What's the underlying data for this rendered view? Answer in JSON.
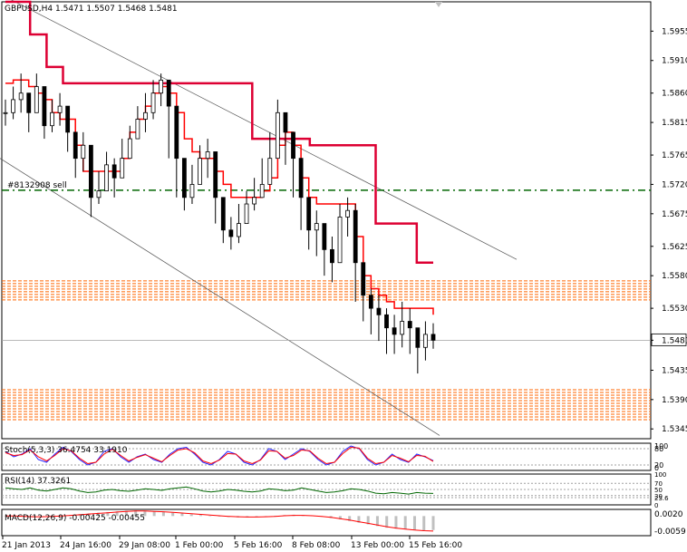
{
  "chart_data": [
    {
      "type": "line",
      "title": "GBPUSD,H4  1.5471 1.5507 1.5468 1.5481",
      "xlabel": "",
      "ylabel": "",
      "ylim": [
        1.533,
        1.6
      ],
      "grid": false,
      "y_ticks": [
        "1.5955",
        "1.5910",
        "1.5860",
        "1.5815",
        "1.5765",
        "1.5720",
        "1.5675",
        "1.5625",
        "1.5580",
        "1.5530",
        "1.5481",
        "1.5435",
        "1.5390",
        "1.5345"
      ],
      "current_price": 1.5481,
      "x_ticks": [
        "21 Jan 2013",
        "24 Jan 16:00",
        "29 Jan 08:00",
        "1 Feb 00:00",
        "5 Feb 16:00",
        "8 Feb 08:00",
        "13 Feb 00:00",
        "15 Feb 16:00"
      ],
      "annotations": [
        {
          "text": "#8132908 sell",
          "price": 1.5711
        }
      ],
      "zones": [
        {
          "from": 1.5542,
          "to": 1.5572,
          "color": "#ff6600"
        },
        {
          "from": 1.5355,
          "to": 1.5405,
          "color": "#ff6600"
        }
      ],
      "trendlines": [
        {
          "from": [
            "21 Jan 2013",
            1.6012
          ],
          "to": [
            "15 Feb 16:00+",
            1.5605
          ]
        },
        {
          "from": [
            "21 Jan 2013",
            1.576
          ],
          "to": [
            "15 Feb 16:00",
            1.5335
          ]
        }
      ],
      "series": [
        {
          "kind": "candles",
          "close": [
            1.583,
            1.585,
            1.586,
            1.583,
            1.587,
            1.581,
            1.583,
            1.584,
            1.58,
            1.576,
            1.578,
            1.57,
            1.571,
            1.575,
            1.573,
            1.576,
            1.579,
            1.582,
            1.583,
            1.586,
            1.588,
            1.584,
            1.576,
            1.57,
            1.572,
            1.576,
            1.577,
            1.57,
            1.565,
            1.564,
            1.566,
            1.569,
            1.57,
            1.572,
            1.576,
            1.583,
            1.58,
            1.576,
            1.57,
            1.565,
            1.566,
            1.562,
            1.56,
            1.567,
            1.568,
            1.56,
            1.555,
            1.553,
            1.552,
            1.55,
            1.549,
            1.551,
            1.55,
            1.547,
            1.549,
            1.5481
          ],
          "high": [
            1.585,
            1.587,
            1.589,
            1.586,
            1.589,
            1.584,
            1.585,
            1.586,
            1.583,
            1.58,
            1.58,
            1.573,
            1.574,
            1.577,
            1.576,
            1.579,
            1.581,
            1.584,
            1.586,
            1.588,
            1.589,
            1.587,
            1.579,
            1.573,
            1.575,
            1.578,
            1.579,
            1.574,
            1.568,
            1.567,
            1.569,
            1.571,
            1.573,
            1.576,
            1.58,
            1.585,
            1.583,
            1.579,
            1.574,
            1.569,
            1.568,
            1.565,
            1.564,
            1.569,
            1.57,
            1.569,
            1.558,
            1.556,
            1.555,
            1.553,
            1.552,
            1.554,
            1.553,
            1.55,
            1.551,
            1.5507
          ],
          "low": [
            1.581,
            1.582,
            1.583,
            1.58,
            1.583,
            1.579,
            1.58,
            1.581,
            1.577,
            1.573,
            1.574,
            1.567,
            1.569,
            1.572,
            1.57,
            1.573,
            1.576,
            1.579,
            1.58,
            1.582,
            1.584,
            1.576,
            1.57,
            1.568,
            1.569,
            1.573,
            1.573,
            1.566,
            1.563,
            1.562,
            1.563,
            1.566,
            1.568,
            1.57,
            1.572,
            1.578,
            1.575,
            1.57,
            1.565,
            1.562,
            1.561,
            1.558,
            1.557,
            1.562,
            1.564,
            1.554,
            1.551,
            1.549,
            1.548,
            1.546,
            1.546,
            1.547,
            1.546,
            1.543,
            1.545,
            1.5468
          ]
        },
        {
          "kind": "stepline",
          "name": "",
          "color": "#dd0033",
          "values": [
            1.6,
            1.6,
            1.6,
            1.595,
            1.595,
            1.59,
            1.59,
            1.5875,
            1.5875,
            1.5875,
            1.5875,
            1.5875,
            1.5875,
            1.5875,
            1.5875,
            1.5875,
            1.5875,
            1.5875,
            1.5875,
            1.5875,
            1.5875,
            1.5875,
            1.5875,
            1.5875,
            1.5875,
            1.5875,
            1.5875,
            1.5875,
            1.5875,
            1.5875,
            1.579,
            1.579,
            1.579,
            1.579,
            1.579,
            1.579,
            1.579,
            1.578,
            1.578,
            1.578,
            1.578,
            1.578,
            1.578,
            1.578,
            1.578,
            1.566,
            1.566,
            1.566,
            1.566,
            1.566,
            1.56,
            1.56,
            1.56
          ]
        },
        {
          "kind": "stepline",
          "name": "",
          "color": "#ff0000",
          "values": [
            1.5875,
            1.588,
            1.588,
            1.587,
            1.586,
            1.585,
            1.583,
            1.582,
            1.582,
            1.578,
            1.574,
            1.574,
            1.574,
            1.574,
            1.574,
            1.576,
            1.58,
            1.582,
            1.584,
            1.586,
            1.587,
            1.586,
            1.583,
            1.579,
            1.577,
            1.576,
            1.576,
            1.574,
            1.572,
            1.57,
            1.57,
            1.57,
            1.57,
            1.571,
            1.573,
            1.578,
            1.58,
            1.578,
            1.573,
            1.57,
            1.569,
            1.569,
            1.569,
            1.569,
            1.569,
            1.564,
            1.558,
            1.556,
            1.555,
            1.554,
            1.553,
            1.553,
            1.553,
            1.553,
            1.553,
            1.552
          ]
        }
      ]
    },
    {
      "type": "line",
      "title": "Stoch(5,3,3) 36.4754 33.1910",
      "ylim": [
        0,
        100
      ],
      "y_ticks": [
        "100",
        "80",
        "20",
        "0"
      ],
      "series": [
        {
          "name": "",
          "color": "#2222ff",
          "values": [
            70,
            50,
            60,
            80,
            40,
            30,
            60,
            85,
            70,
            40,
            20,
            30,
            70,
            80,
            50,
            30,
            50,
            60,
            40,
            30,
            60,
            80,
            85,
            60,
            30,
            20,
            40,
            70,
            60,
            30,
            20,
            40,
            80,
            70,
            40,
            60,
            80,
            70,
            40,
            20,
            30,
            70,
            90,
            80,
            40,
            20,
            30,
            60,
            40,
            30,
            60,
            50,
            36
          ]
        },
        {
          "name": "",
          "color": "#ff0000",
          "values": [
            65,
            55,
            58,
            75,
            50,
            35,
            55,
            80,
            72,
            45,
            25,
            30,
            60,
            78,
            55,
            35,
            48,
            58,
            45,
            32,
            55,
            75,
            80,
            65,
            35,
            25,
            38,
            62,
            60,
            35,
            25,
            38,
            72,
            70,
            45,
            55,
            75,
            72,
            45,
            25,
            30,
            62,
            85,
            82,
            45,
            25,
            30,
            55,
            45,
            32,
            55,
            52,
            33
          ]
        }
      ]
    },
    {
      "type": "line",
      "title": "RSI(14) 37.3261",
      "ylim": [
        0,
        100
      ],
      "y_ticks": [
        "100",
        "70",
        "50",
        "30",
        "23.6",
        "0"
      ],
      "series": [
        {
          "name": "",
          "color": "#006600",
          "values": [
            55,
            52,
            50,
            55,
            48,
            45,
            50,
            55,
            52,
            45,
            40,
            42,
            48,
            50,
            46,
            44,
            48,
            52,
            50,
            47,
            52,
            55,
            58,
            52,
            45,
            42,
            45,
            50,
            48,
            44,
            42,
            45,
            52,
            50,
            46,
            48,
            55,
            50,
            45,
            40,
            42,
            46,
            52,
            50,
            45,
            38,
            36,
            40,
            38,
            35,
            40,
            38,
            37
          ]
        }
      ]
    },
    {
      "type": "bar",
      "title": "MACD(12,26,9) -0.00425 -0.00455",
      "ylim": [
        -0.0059,
        0.002
      ],
      "y_ticks": [
        "0.0020",
        "-0.0059"
      ],
      "series": [
        {
          "name": "",
          "kind": "histogram",
          "color": "#c0c0c0",
          "values": [
            0.0001,
            0.0,
            -0.0002,
            -0.0003,
            -0.0002,
            -0.0001,
            0.0001,
            0.0003,
            0.0006,
            0.0008,
            0.001,
            0.0012,
            0.0014,
            0.0016,
            0.0017,
            0.0016,
            0.0014,
            0.0012,
            0.001,
            0.0008,
            0.0005,
            0.0003,
            0.0001,
            -0.0001,
            -0.0003,
            -0.0004,
            -0.0004,
            -0.0003,
            -0.0001,
            0.0001,
            0.0003,
            0.0004,
            0.0003,
            0.0001,
            -0.0002,
            -0.0006,
            -0.001,
            -0.0015,
            -0.002,
            -0.0025,
            -0.003,
            -0.0035,
            -0.0038,
            -0.004,
            -0.0042,
            -0.0043,
            -0.0042
          ]
        },
        {
          "name": "",
          "kind": "signal",
          "color": "#ff0000",
          "values": [
            0.0,
            0.0,
            -0.0001,
            -0.0002,
            -0.0002,
            -0.0001,
            0.0,
            0.0002,
            0.0004,
            0.0006,
            0.0008,
            0.001,
            0.0012,
            0.0014,
            0.0015,
            0.0015,
            0.0014,
            0.0013,
            0.0011,
            0.0009,
            0.0007,
            0.0005,
            0.0003,
            0.0001,
            -0.0001,
            -0.0002,
            -0.0003,
            -0.0003,
            -0.0002,
            -0.0001,
            0.0001,
            0.0002,
            0.0002,
            0.0001,
            -0.0001,
            -0.0004,
            -0.0008,
            -0.0012,
            -0.0017,
            -0.0022,
            -0.0027,
            -0.0032,
            -0.0036,
            -0.0039,
            -0.0042,
            -0.0044,
            -0.0045
          ]
        }
      ]
    }
  ]
}
